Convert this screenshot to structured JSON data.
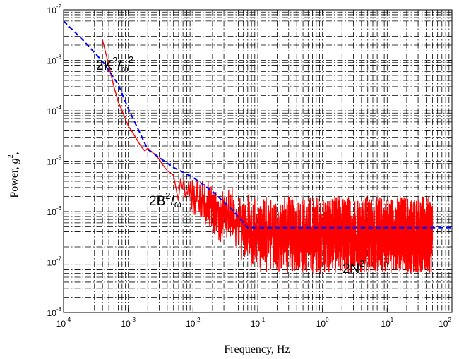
{
  "chart_data": {
    "type": "line",
    "title": "",
    "xlabel": "Frequency, Hz",
    "ylabel": "Power, g²,",
    "ylabel_parts": {
      "base": "Power, ",
      "var": "g",
      "sup": "2",
      "tail": ","
    },
    "xscale": "log",
    "yscale": "log",
    "xlim": [
      0.0001,
      100
    ],
    "ylim": [
      1e-08,
      0.01
    ],
    "grid": true,
    "x_ticks": [
      {
        "base": "10",
        "exp": "-4"
      },
      {
        "base": "10",
        "exp": "-3"
      },
      {
        "base": "10",
        "exp": "-2"
      },
      {
        "base": "10",
        "exp": "-1"
      },
      {
        "base": "10",
        "exp": "0"
      },
      {
        "base": "10",
        "exp": "1"
      },
      {
        "base": "10",
        "exp": "2"
      }
    ],
    "y_ticks": [
      {
        "base": "10",
        "exp": "-8"
      },
      {
        "base": "10",
        "exp": "-7"
      },
      {
        "base": "10",
        "exp": "-6"
      },
      {
        "base": "10",
        "exp": "-5"
      },
      {
        "base": "10",
        "exp": "-4"
      },
      {
        "base": "10",
        "exp": "-3"
      },
      {
        "base": "10",
        "exp": "-2"
      }
    ],
    "series": [
      {
        "color": "#ff0000",
        "style": "solid",
        "x": [
          0.0004,
          0.0005,
          0.0006,
          0.0007,
          0.0008,
          0.0009,
          0.001,
          0.0012,
          0.0014,
          0.0016,
          0.0018,
          0.002,
          0.0025,
          0.003,
          0.0035,
          0.004,
          0.005,
          0.006,
          0.007,
          0.008,
          0.009,
          0.01,
          0.015,
          0.02,
          0.03,
          0.05,
          0.1,
          1,
          10,
          50
        ],
        "y": [
          0.0025,
          0.0008,
          0.0003,
          0.00015,
          0.0001,
          7e-05,
          5e-05,
          3.5e-05,
          2.5e-05,
          1.9e-05,
          1.6e-05,
          1.8e-05,
          1.4e-05,
          1.1e-05,
          8e-06,
          6.5e-06,
          5.5e-06,
          4.5e-06,
          4e-06,
          3.5e-06,
          3.5e-06,
          3e-06,
          2.2e-06,
          1.6e-06,
          1.1e-06,
          6.5e-07,
          5e-07,
          5e-07,
          5e-07,
          5e-07
        ],
        "noise_band": {
          "x_start": 0.005,
          "x_end": 50,
          "y_low_near": 1.5e-06,
          "y_high_near": 7e-06,
          "y_low_far": 6e-08,
          "y_high_far": 2e-06
        }
      },
      {
        "color": "#0000ff",
        "style": "dashed",
        "x": [
          0.0001,
          0.0002,
          0.0004,
          0.0007,
          0.001,
          0.002,
          0.005,
          0.01,
          0.02,
          0.04,
          0.06,
          0.07,
          1,
          10,
          100
        ],
        "y": [
          0.006,
          0.0025,
          0.00095,
          0.00033,
          0.00011,
          1.7e-05,
          7.5e-06,
          4.8e-06,
          2.5e-06,
          1.1e-06,
          6e-07,
          4.8e-07,
          4.8e-07,
          4.8e-07,
          4.8e-07
        ]
      }
    ],
    "annotations": [
      {
        "parts": [
          "2K",
          "2",
          "/",
          "ω",
          "2"
        ]
      },
      {
        "parts": [
          "2B",
          "2",
          "/",
          "ω",
          ""
        ]
      },
      {
        "parts": [
          "2N",
          "2",
          "",
          "",
          ""
        ]
      }
    ]
  }
}
